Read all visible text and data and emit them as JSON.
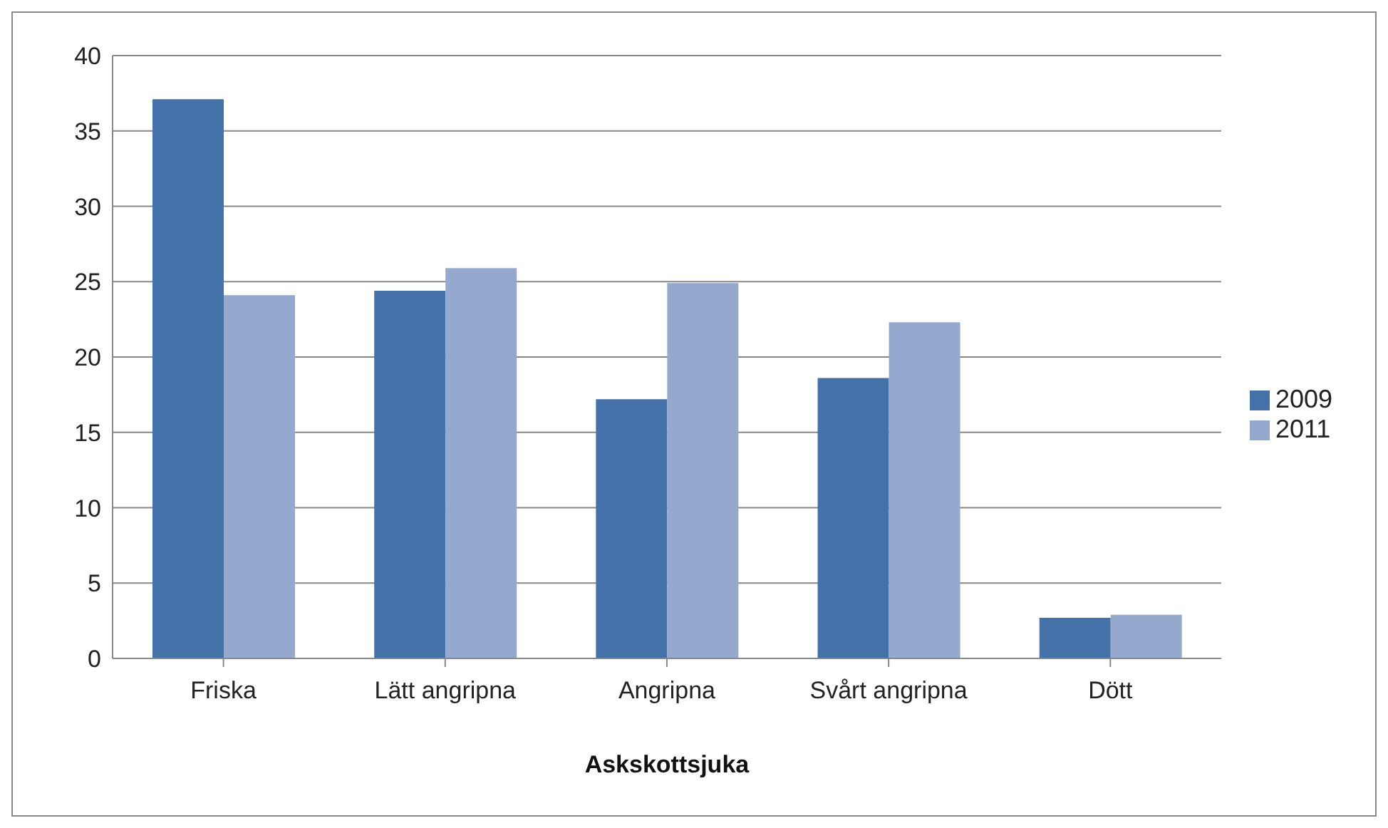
{
  "chart_data": {
    "type": "bar",
    "xlabel": "Askskottsjuka",
    "categories": [
      "Friska",
      "Lätt angripna",
      "Angripna",
      "Svårt angripna",
      "Dött"
    ],
    "series": [
      {
        "name": "2009",
        "color": "#4472a8",
        "values": [
          37.1,
          24.4,
          17.2,
          18.6,
          2.7
        ]
      },
      {
        "name": "2011",
        "color": "#95a9cf",
        "values": [
          24.1,
          25.9,
          24.9,
          22.3,
          2.9
        ]
      }
    ],
    "ylim": [
      0,
      40
    ],
    "yticks": [
      0,
      5,
      10,
      15,
      20,
      25,
      30,
      35,
      40
    ],
    "grid": "y",
    "legend": "right"
  }
}
